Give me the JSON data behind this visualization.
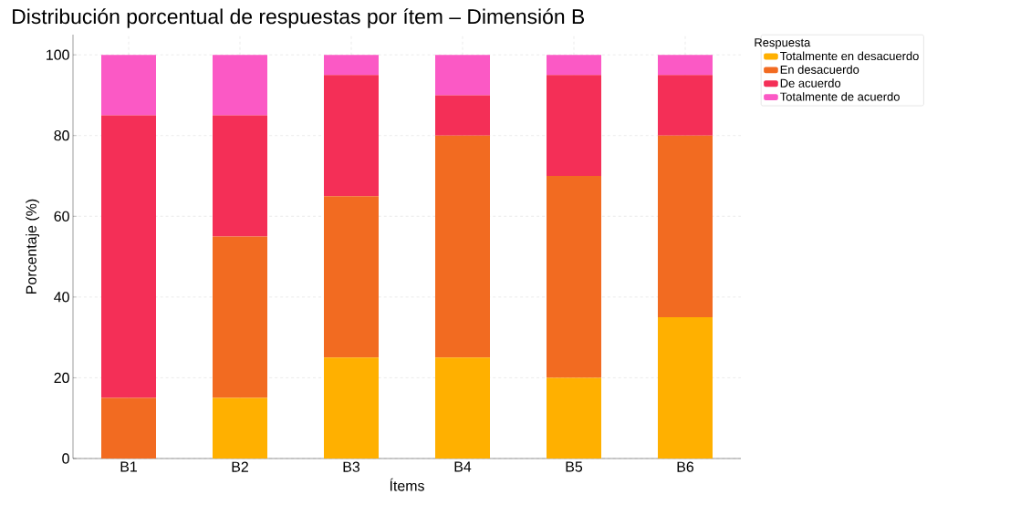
{
  "chart_data": {
    "type": "bar",
    "stacked": true,
    "title": "Distribución porcentual de respuestas por ítem – Dimensión B",
    "xlabel": "Ítems",
    "ylabel": "Porcentaje (%)",
    "legend_title": "Respuesta",
    "categories": [
      "B1",
      "B2",
      "B3",
      "B4",
      "B5",
      "B6"
    ],
    "series": [
      {
        "name": "Totalmente en desacuerdo",
        "color": "#ffb000",
        "values": [
          0,
          15,
          25,
          25,
          20,
          35
        ]
      },
      {
        "name": "En desacuerdo",
        "color": "#f26b21",
        "values": [
          15,
          40,
          40,
          55,
          50,
          45
        ]
      },
      {
        "name": "De acuerdo",
        "color": "#f42f57",
        "values": [
          70,
          30,
          30,
          10,
          25,
          15
        ]
      },
      {
        "name": "Totalmente de acuerdo",
        "color": "#fb59c5",
        "values": [
          15,
          15,
          5,
          10,
          5,
          5
        ]
      }
    ],
    "ylim": [
      0,
      105
    ],
    "yticks": [
      0,
      20,
      40,
      60,
      80,
      100
    ],
    "grid": true,
    "legend": "top right"
  }
}
